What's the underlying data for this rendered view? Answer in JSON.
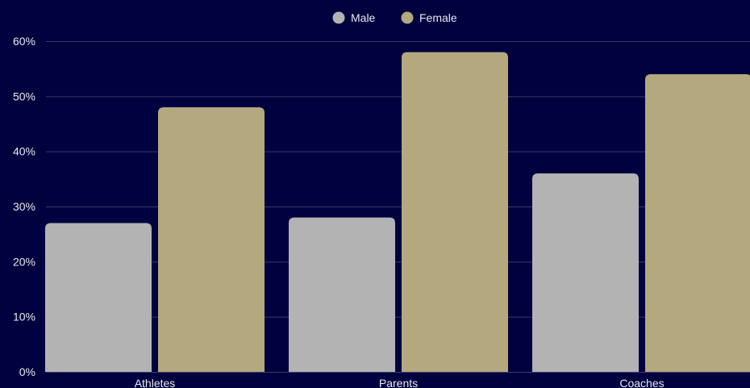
{
  "chart_data": {
    "type": "bar",
    "categories": [
      "Athletes",
      "Parents",
      "Coaches"
    ],
    "series": [
      {
        "name": "Male",
        "values": [
          27,
          28,
          36
        ],
        "color": "#b2b3b2"
      },
      {
        "name": "Female",
        "values": [
          48,
          58,
          54
        ],
        "color": "#b3a87e"
      }
    ],
    "y_tick_labels": [
      "0%",
      "10%",
      "20%",
      "30%",
      "40%",
      "50%",
      "60%"
    ],
    "y_ticks": [
      0,
      10,
      20,
      30,
      40,
      50,
      60
    ],
    "ylim": [
      0,
      60
    ],
    "grid": true,
    "legend_position": "top-center",
    "background_color": "#01013f",
    "grid_color": "#3a3a6e",
    "text_color": "#e8e8ee"
  }
}
